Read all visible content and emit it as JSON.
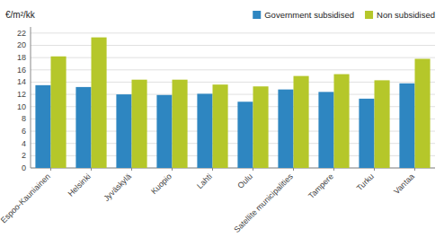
{
  "chart_data": {
    "type": "bar",
    "ylabel": "€/m²/kk",
    "categories": [
      "Espoo-Kauniainen",
      "Helsinki",
      "Jyväskylä",
      "Kuopio",
      "Lahti",
      "Oulu",
      "Satellite municipalities",
      "Tampere",
      "Turku",
      "Vantaa"
    ],
    "series": [
      {
        "name": "Government subsidised",
        "color": "#2e86c1",
        "values": [
          13.5,
          13.2,
          12.0,
          11.9,
          12.1,
          10.8,
          12.8,
          12.4,
          11.3,
          13.8
        ]
      },
      {
        "name": "Non subsidised",
        "color": "#b5c72a",
        "values": [
          18.2,
          21.3,
          14.4,
          14.4,
          13.6,
          13.3,
          15.0,
          15.3,
          14.3,
          17.8
        ]
      }
    ],
    "ylim": [
      0,
      23
    ],
    "yticks": [
      0,
      2,
      4,
      6,
      8,
      10,
      12,
      14,
      16,
      18,
      20,
      22
    ],
    "grid": true,
    "legend": "upper right"
  }
}
